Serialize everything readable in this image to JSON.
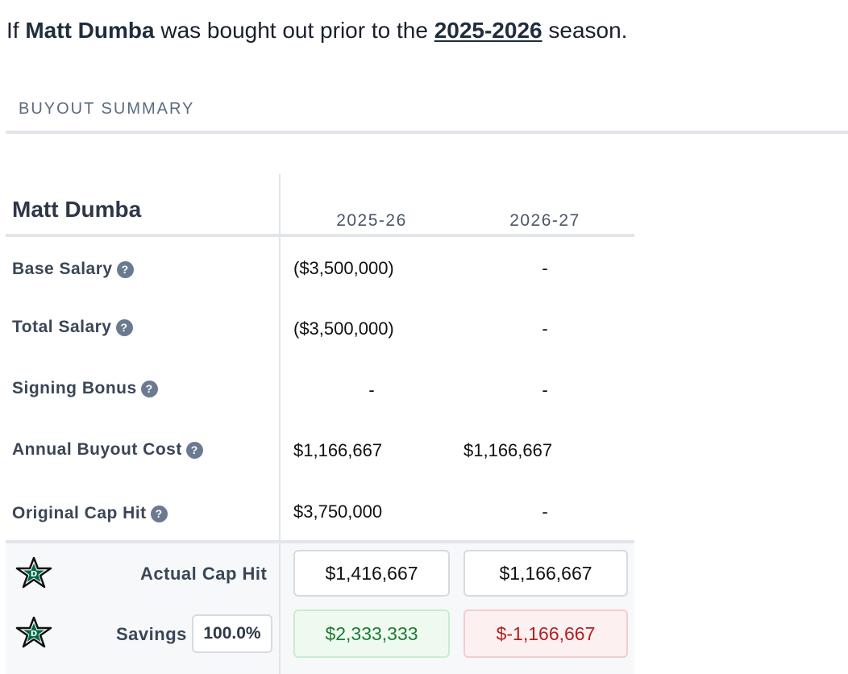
{
  "headline": {
    "prefix": "If",
    "player": "Matt Dumba",
    "middle": "was bought out prior to the",
    "season_link": "2025-2026",
    "suffix": "season."
  },
  "section_title": "BUYOUT SUMMARY",
  "table": {
    "player_name": "Matt Dumba",
    "seasons": [
      "2025-26",
      "2026-27"
    ],
    "rows": [
      {
        "label": "Base Salary",
        "values": [
          "($3,500,000)",
          "-"
        ]
      },
      {
        "label": "Total Salary",
        "values": [
          "($3,500,000)",
          "-"
        ]
      },
      {
        "label": "Signing Bonus",
        "values": [
          "-",
          "-"
        ]
      },
      {
        "label": "Annual Buyout Cost",
        "values": [
          "$1,166,667",
          "$1,166,667"
        ]
      },
      {
        "label": "Original Cap Hit",
        "values": [
          "$3,750,000",
          "-"
        ]
      }
    ],
    "help_icon": "question-circle-icon",
    "team_logo": "dallas-stars-logo",
    "actual_cap_hit": {
      "label": "Actual Cap Hit",
      "values": [
        "$1,416,667",
        "$1,166,667"
      ]
    },
    "savings": {
      "label": "Savings",
      "percent": "100.0%",
      "values": [
        "$2,333,333",
        "$-1,166,667"
      ]
    }
  },
  "colors": {
    "savings_positive": "#1d7a35",
    "savings_negative": "#b31f1f",
    "logo_green": "#006847"
  }
}
